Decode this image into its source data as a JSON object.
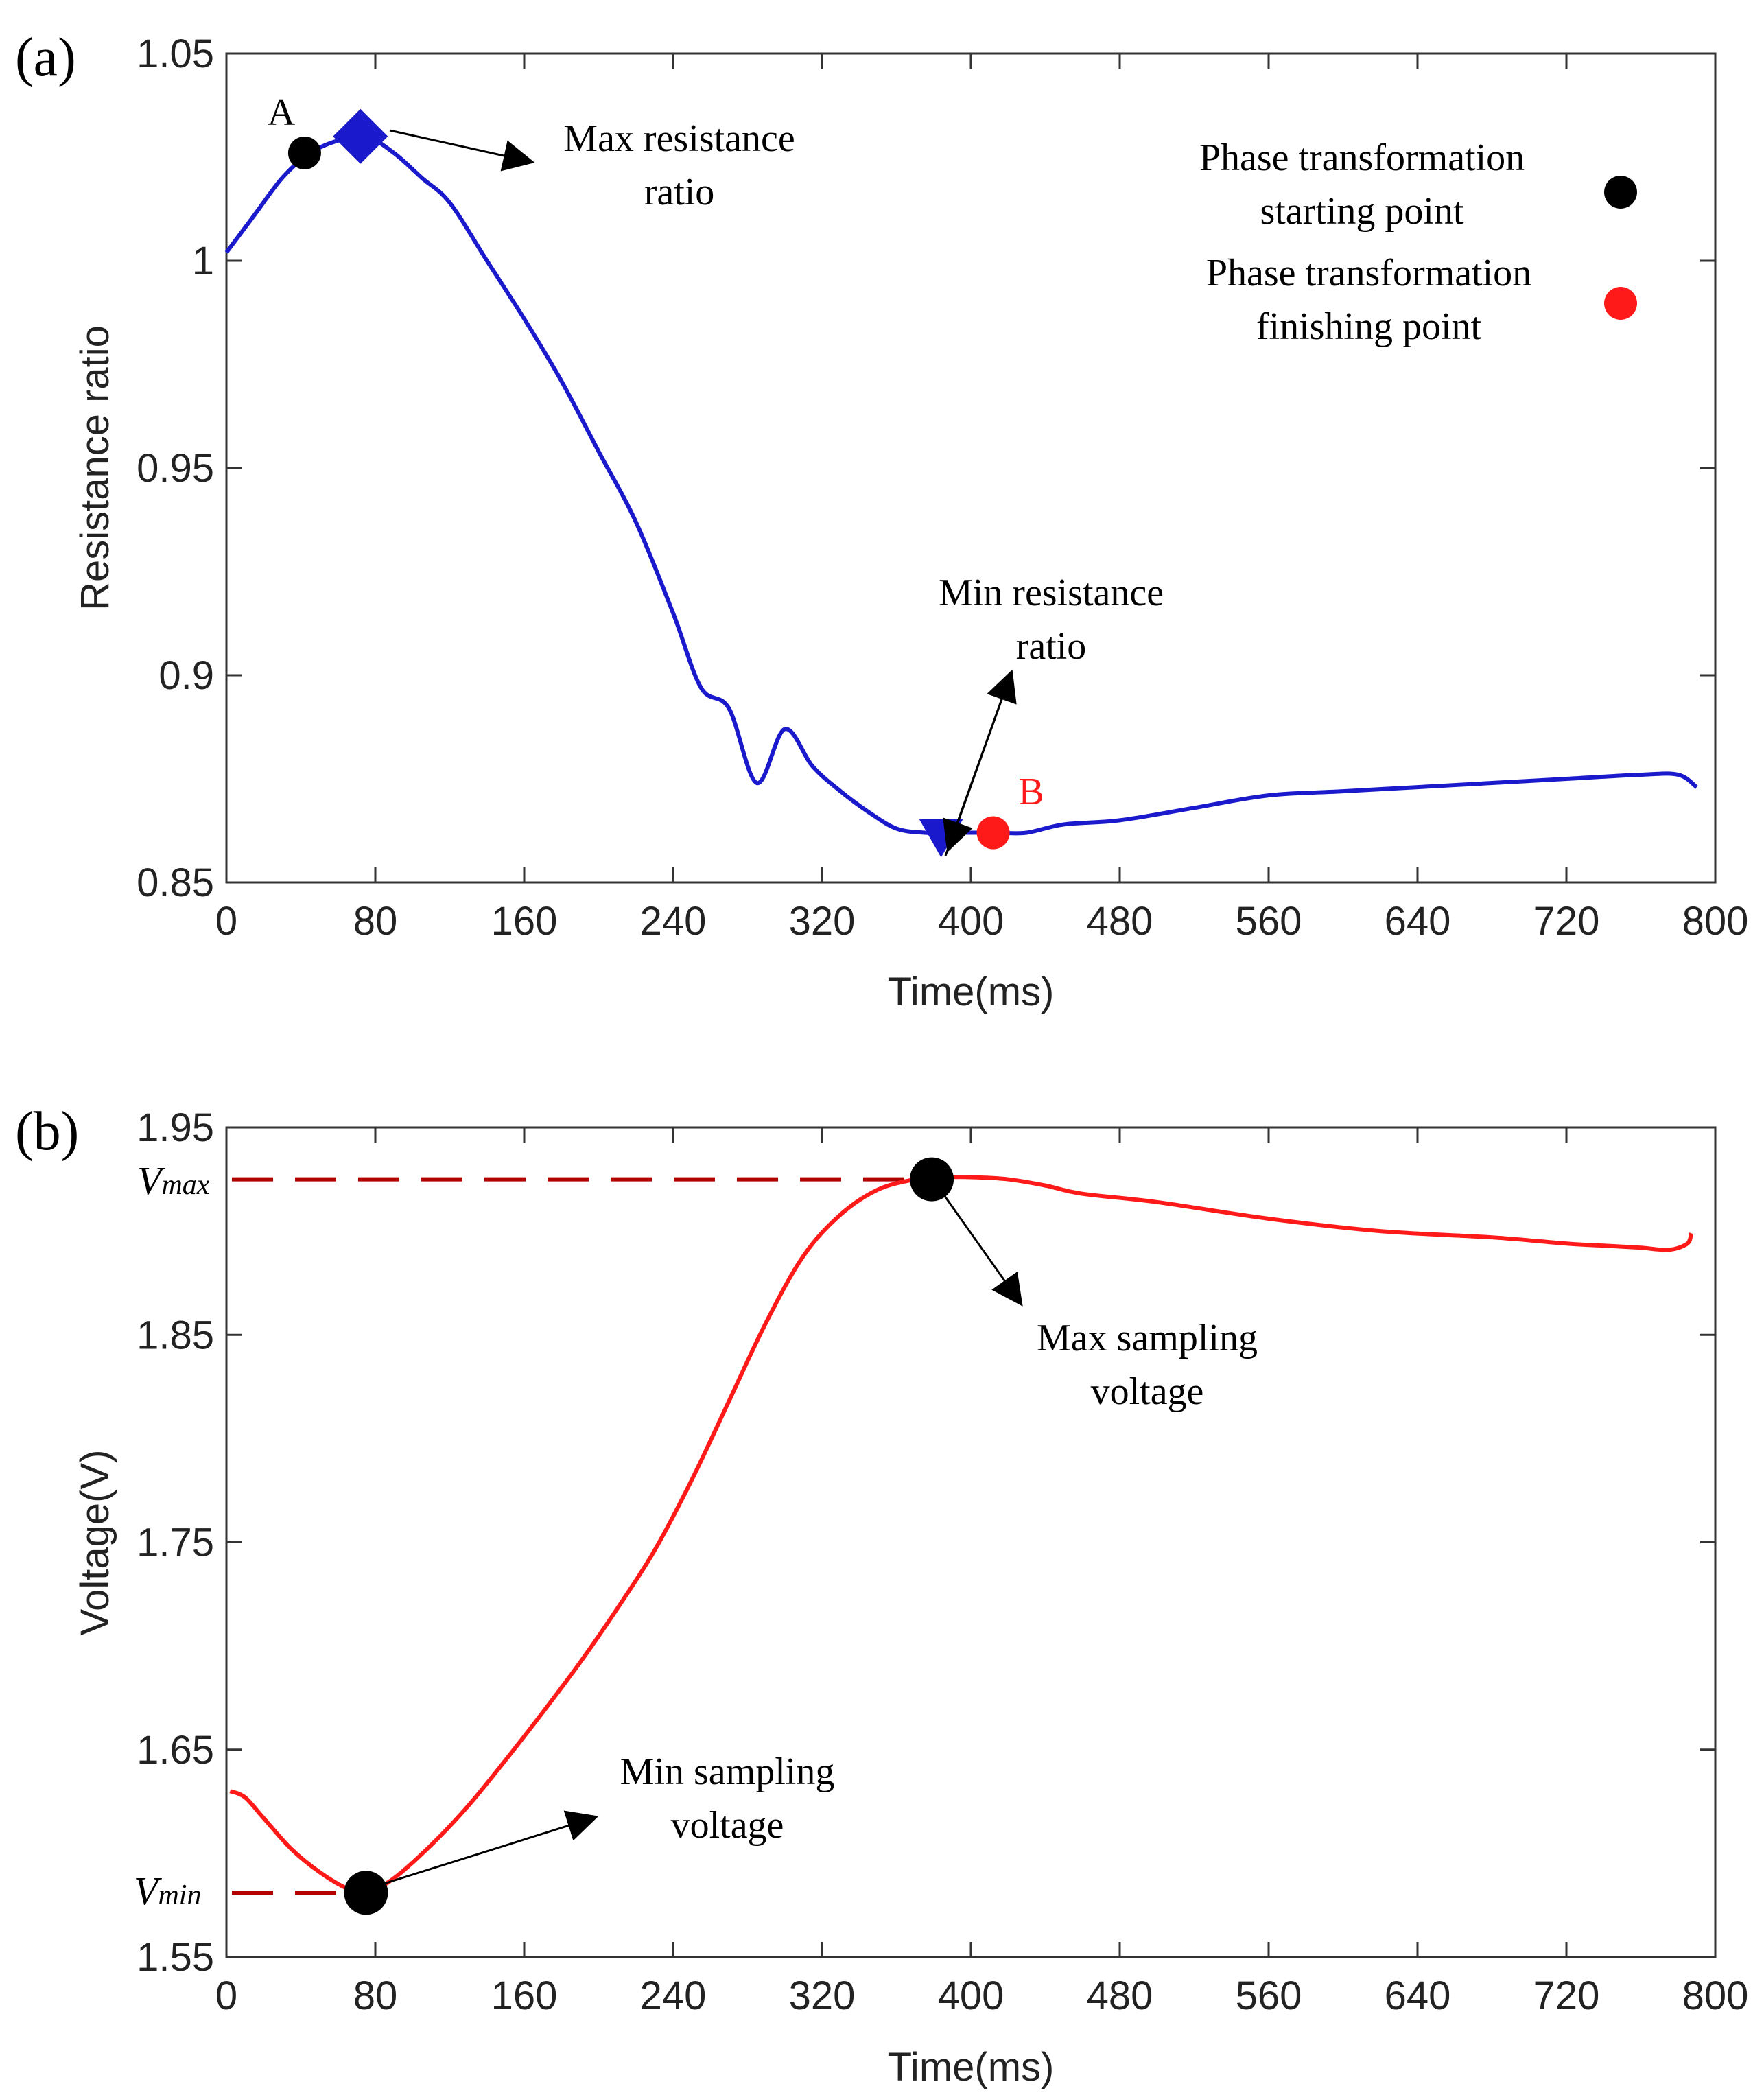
{
  "chart_data": [
    {
      "panel_label": "(a)",
      "type": "line",
      "xlabel": "Time(ms)",
      "ylabel": "Resistance ratio",
      "xlim": [
        0,
        800
      ],
      "ylim": [
        0.85,
        1.05
      ],
      "xticks": [
        0,
        80,
        160,
        240,
        320,
        400,
        480,
        560,
        640,
        720,
        800
      ],
      "yticks": [
        "0.85",
        "0.9",
        "0.95",
        "1",
        "1.05"
      ],
      "yticks_values": [
        0.85,
        0.9,
        0.95,
        1.0,
        1.05
      ],
      "line_color": "#1a1acc",
      "series": [
        {
          "name": "Resistance ratio",
          "x": [
            0,
            15,
            30,
            45,
            60,
            75,
            90,
            105,
            120,
            140,
            160,
            180,
            200,
            220,
            240,
            255,
            270,
            285,
            300,
            315,
            330,
            345,
            360,
            375,
            385,
            400,
            415,
            430,
            450,
            480,
            520,
            560,
            600,
            640,
            680,
            720,
            760,
            780,
            790
          ],
          "y": [
            1.002,
            1.011,
            1.02,
            1.026,
            1.029,
            1.03,
            1.026,
            1.02,
            1.014,
            1.0,
            0.986,
            0.971,
            0.954,
            0.937,
            0.915,
            0.897,
            0.892,
            0.874,
            0.887,
            0.878,
            0.872,
            0.867,
            0.863,
            0.862,
            0.862,
            0.862,
            0.862,
            0.862,
            0.864,
            0.865,
            0.868,
            0.871,
            0.872,
            0.873,
            0.874,
            0.875,
            0.876,
            0.876,
            0.873
          ]
        }
      ],
      "markers": [
        {
          "name": "A",
          "label": "A",
          "x": 42,
          "y": 1.026,
          "shape": "circle",
          "color": "#000000"
        },
        {
          "name": "max",
          "x": 72,
          "y": 1.03,
          "shape": "diamond",
          "color": "#1a1acc"
        },
        {
          "name": "min",
          "x": 384,
          "y": 0.861,
          "shape": "triangle-down",
          "color": "#1a1acc"
        },
        {
          "name": "B",
          "label": "B",
          "x": 412,
          "y": 0.862,
          "shape": "circle",
          "color": "#ff1a1a"
        }
      ],
      "annotations": {
        "max_text": [
          "Max resistance",
          "ratio"
        ],
        "min_text": [
          "Min resistance",
          "ratio"
        ]
      },
      "legend": [
        {
          "text": [
            "Phase transformation",
            "starting point"
          ],
          "color": "#000000"
        },
        {
          "text": [
            "Phase transformation",
            "finishing point"
          ],
          "color": "#ff1a1a"
        }
      ],
      "legend_position": "top-right"
    },
    {
      "panel_label": "(b)",
      "type": "line",
      "xlabel": "Time(ms)",
      "ylabel": "Voltage(V)",
      "xlim": [
        0,
        800
      ],
      "ylim": [
        1.55,
        1.95
      ],
      "xticks": [
        0,
        80,
        160,
        240,
        320,
        400,
        480,
        560,
        640,
        720,
        800
      ],
      "yticks": [
        "1.55",
        "1.65",
        "1.75",
        "1.85",
        "1.95"
      ],
      "yticks_values": [
        1.55,
        1.65,
        1.75,
        1.85,
        1.95
      ],
      "line_color": "#ff1a1a",
      "series": [
        {
          "name": "Voltage",
          "x": [
            2,
            10,
            20,
            35,
            50,
            65,
            75,
            90,
            110,
            130,
            150,
            170,
            190,
            210,
            230,
            250,
            270,
            290,
            310,
            330,
            350,
            370,
            380,
            400,
            420,
            440,
            460,
            500,
            560,
            620,
            680,
            720,
            740,
            760,
            775,
            785,
            787
          ],
          "y": [
            1.63,
            1.627,
            1.617,
            1.602,
            1.591,
            1.583,
            1.581,
            1.588,
            1.604,
            1.623,
            1.645,
            1.668,
            1.692,
            1.718,
            1.746,
            1.78,
            1.818,
            1.856,
            1.888,
            1.908,
            1.92,
            1.925,
            1.926,
            1.926,
            1.925,
            1.922,
            1.918,
            1.914,
            1.906,
            1.9,
            1.897,
            1.894,
            1.893,
            1.892,
            1.891,
            1.894,
            1.899
          ]
        }
      ],
      "markers": [
        {
          "name": "vmin",
          "x": 75,
          "y": 1.581,
          "shape": "circle",
          "color": "#000000"
        },
        {
          "name": "vmax",
          "x": 379,
          "y": 1.925,
          "shape": "circle",
          "color": "#000000"
        }
      ],
      "reference_lines": [
        {
          "name": "vmax",
          "label_main": "V",
          "label_sub": "max",
          "y": 1.925,
          "x_end": 379,
          "color": "#b30000"
        },
        {
          "name": "vmin",
          "label_main": "V",
          "label_sub": "min",
          "y": 1.581,
          "x_end": 75,
          "color": "#b30000"
        }
      ],
      "annotations": {
        "max_text": [
          "Max sampling",
          "voltage"
        ],
        "min_text": [
          "Min sampling",
          "voltage"
        ]
      }
    }
  ]
}
